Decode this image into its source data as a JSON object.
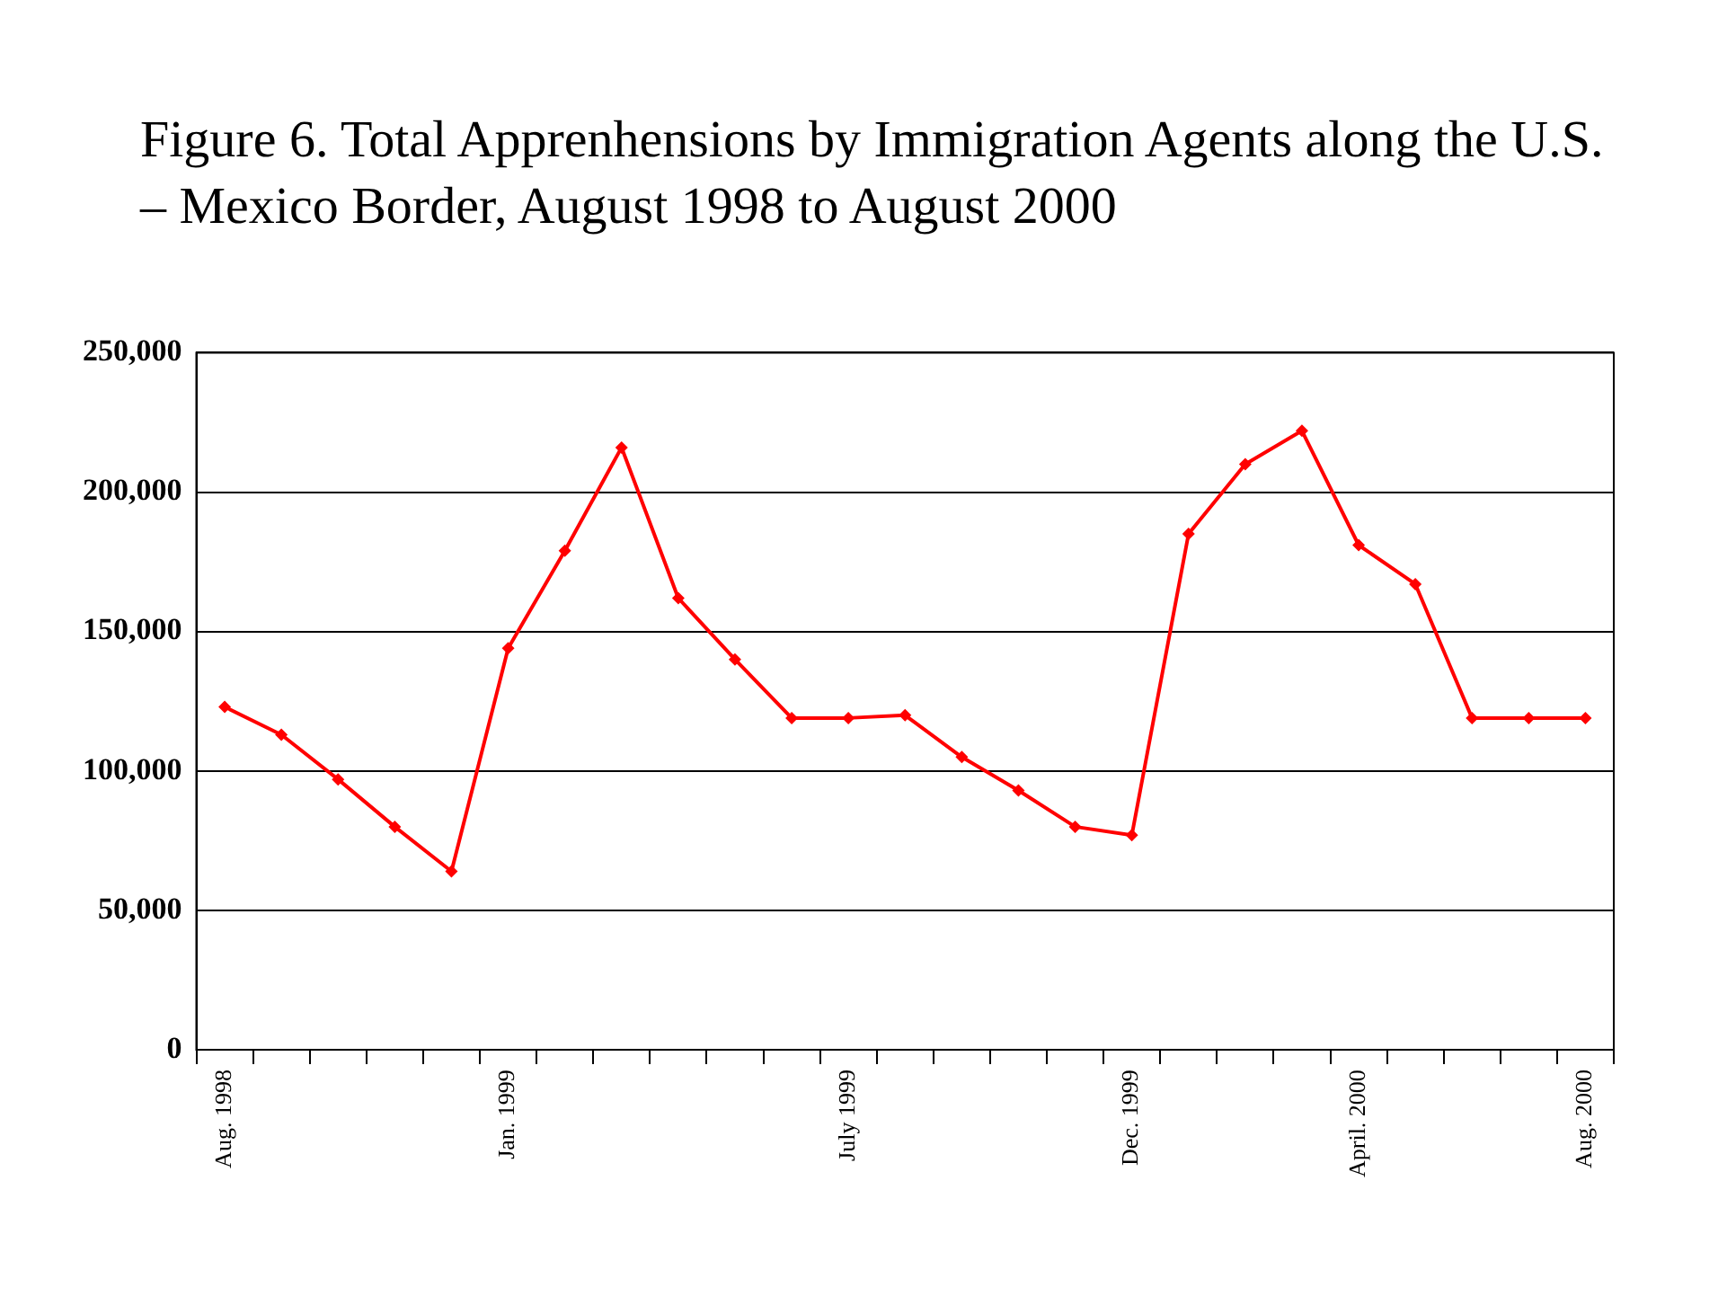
{
  "chart_data": {
    "type": "line",
    "title": "Figure 6. Total Apprenhensions by Immigration Agents along the U.S. – Mexico Border, August 1998 to August 2000",
    "categories": [
      "Aug. 1998",
      null,
      null,
      null,
      null,
      "Jan. 1999",
      null,
      null,
      null,
      null,
      null,
      "July 1999",
      null,
      null,
      null,
      null,
      "Dec. 1999",
      null,
      null,
      null,
      "April. 2000",
      null,
      null,
      null,
      "Aug. 2000"
    ],
    "series": [
      {
        "color": "#ff0000",
        "values": [
          123000,
          113000,
          97000,
          80000,
          64000,
          144000,
          179000,
          216000,
          162000,
          140000,
          119000,
          119000,
          120000,
          105000,
          93000,
          80000,
          77000,
          185000,
          210000,
          222000,
          181000,
          167000,
          119000,
          119000,
          119000
        ]
      }
    ],
    "ylim": [
      0,
      250000
    ],
    "yticks": [
      {
        "value": 0,
        "label": "0"
      },
      {
        "value": 50000,
        "label": "50,000"
      },
      {
        "value": 100000,
        "label": "100,000"
      },
      {
        "value": 150000,
        "label": "150,000"
      },
      {
        "value": 200000,
        "label": "200,000"
      },
      {
        "value": 250000,
        "label": "250,000"
      }
    ],
    "grid": "y",
    "legend": false,
    "marker": "diamond",
    "line_style": "solid"
  }
}
